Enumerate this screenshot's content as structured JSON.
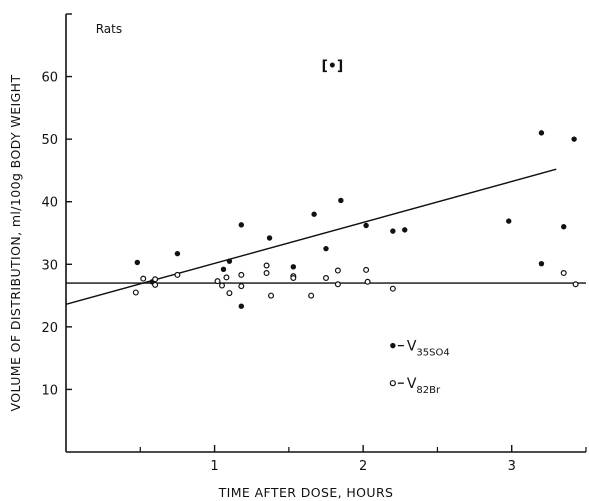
{
  "chart_data": {
    "type": "scatter",
    "xlabel": "TIME AFTER DOSE, HOURS",
    "ylabel": "VOLUME OF DISTRIBUTION, ml/100g BODY WEIGHT",
    "xlim": [
      0,
      3.5
    ],
    "ylim": [
      0,
      70
    ],
    "x_ticks": [
      1,
      2,
      3
    ],
    "y_ticks": [
      10,
      20,
      30,
      40,
      50,
      60
    ],
    "grid": false,
    "annotations": [
      {
        "text": "Rats",
        "x": 0.2,
        "y": 67
      },
      {
        "text": "[•]",
        "x": 1.72,
        "y": 61
      }
    ],
    "legend": {
      "placement": "bottom-right",
      "entries": [
        {
          "marker": "filled-circle",
          "prefix": "V",
          "subscript": "35SO4",
          "label": "V35SO4"
        },
        {
          "marker": "open-circle",
          "prefix": "V",
          "subscript": "82Br",
          "label": "V82Br"
        }
      ]
    },
    "series": [
      {
        "label": "V35SO4",
        "marker": "filled",
        "points": [
          {
            "x": 0.48,
            "y": 30.3
          },
          {
            "x": 0.58,
            "y": 27.2
          },
          {
            "x": 0.75,
            "y": 31.7
          },
          {
            "x": 1.06,
            "y": 29.2
          },
          {
            "x": 1.1,
            "y": 30.5
          },
          {
            "x": 1.18,
            "y": 36.3
          },
          {
            "x": 1.18,
            "y": 23.3
          },
          {
            "x": 1.37,
            "y": 34.2
          },
          {
            "x": 1.53,
            "y": 29.6
          },
          {
            "x": 1.67,
            "y": 38.0
          },
          {
            "x": 1.75,
            "y": 32.5
          },
          {
            "x": 1.85,
            "y": 40.2
          },
          {
            "x": 2.02,
            "y": 36.2
          },
          {
            "x": 2.2,
            "y": 35.3
          },
          {
            "x": 2.28,
            "y": 35.5
          },
          {
            "x": 2.98,
            "y": 36.9
          },
          {
            "x": 3.2,
            "y": 51.0
          },
          {
            "x": 3.2,
            "y": 30.1
          },
          {
            "x": 3.35,
            "y": 36.0
          },
          {
            "x": 3.42,
            "y": 50.0
          }
        ],
        "fit_line": {
          "x1": 0.0,
          "y1": 23.6,
          "x2": 3.3,
          "y2": 45.2
        }
      },
      {
        "label": "V82Br",
        "marker": "open",
        "points": [
          {
            "x": 0.47,
            "y": 25.5
          },
          {
            "x": 0.52,
            "y": 27.7
          },
          {
            "x": 0.6,
            "y": 27.6
          },
          {
            "x": 0.6,
            "y": 26.7
          },
          {
            "x": 0.75,
            "y": 28.3
          },
          {
            "x": 1.02,
            "y": 27.3
          },
          {
            "x": 1.05,
            "y": 26.6
          },
          {
            "x": 1.08,
            "y": 27.9
          },
          {
            "x": 1.1,
            "y": 25.4
          },
          {
            "x": 1.18,
            "y": 28.3
          },
          {
            "x": 1.18,
            "y": 26.5
          },
          {
            "x": 1.35,
            "y": 28.6
          },
          {
            "x": 1.35,
            "y": 29.8
          },
          {
            "x": 1.38,
            "y": 25.0
          },
          {
            "x": 1.53,
            "y": 28.1
          },
          {
            "x": 1.53,
            "y": 27.8
          },
          {
            "x": 1.65,
            "y": 25.0
          },
          {
            "x": 1.75,
            "y": 27.8
          },
          {
            "x": 1.83,
            "y": 29.0
          },
          {
            "x": 1.83,
            "y": 26.8
          },
          {
            "x": 2.02,
            "y": 29.1
          },
          {
            "x": 2.03,
            "y": 27.2
          },
          {
            "x": 2.2,
            "y": 26.1
          },
          {
            "x": 3.35,
            "y": 28.6
          },
          {
            "x": 3.43,
            "y": 26.8
          }
        ],
        "fit_line": {
          "x1": 0.0,
          "y1": 27.0,
          "x2": 3.5,
          "y2": 27.0
        }
      }
    ]
  }
}
